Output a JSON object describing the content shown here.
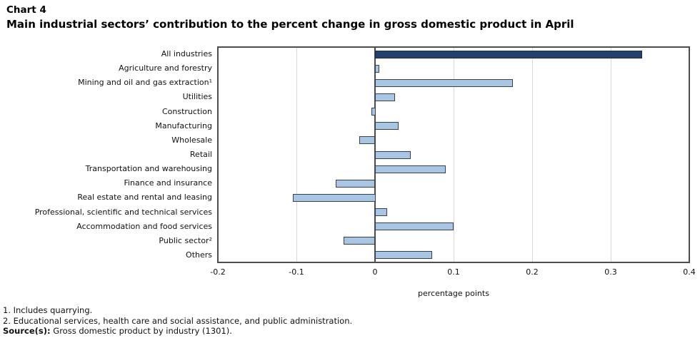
{
  "title": {
    "line1": "Chart 4",
    "line2": "Main industrial sectors’ contribution to the percent change in gross domestic product in April"
  },
  "chart_data": {
    "type": "bar",
    "orientation": "horizontal",
    "title": "Main industrial sectors’ contribution to the percent change in gross domestic product in April",
    "categories": [
      "All industries",
      "Agriculture and forestry",
      "Mining and oil and gas extraction¹",
      "Utilities",
      "Construction",
      "Manufacturing",
      "Wholesale",
      "Retail",
      "Transportation and warehousing",
      "Finance and insurance",
      "Real estate and rental and leasing",
      "Professional, scientific and technical services",
      "Accommodation and food services",
      "Public sector²",
      "Others"
    ],
    "values": [
      0.34,
      0.005,
      0.175,
      0.025,
      -0.005,
      0.03,
      -0.02,
      0.045,
      0.09,
      -0.05,
      -0.105,
      0.015,
      0.1,
      -0.04,
      0.073
    ],
    "highlight_index": 0,
    "xlabel": "percentage points",
    "xlim": [
      -0.2,
      0.4
    ],
    "xticks": [
      -0.2,
      -0.1,
      0,
      0.1,
      0.2,
      0.3,
      0.4
    ],
    "xtick_labels": [
      "-0.2",
      "-0.1",
      "0",
      "0.1",
      "0.2",
      "0.3",
      "0.4"
    ],
    "grid": true,
    "legend": "none",
    "colors": {
      "highlight_bar": "#23406c",
      "highlight_bar_border": "#1a2b47",
      "bar": "#a9c5e4",
      "bar_border": "#38404c",
      "plot_border": "#4d4d4d",
      "zero_line": "#4d4d4d",
      "gridline": "#d9d9d9"
    }
  },
  "footnotes": [
    "1. Includes quarrying.",
    "2. Educational services, health care and social assistance, and public administration."
  ],
  "source": {
    "label": "Source(s):",
    "text": "Gross domestic product by industry (1301)."
  }
}
